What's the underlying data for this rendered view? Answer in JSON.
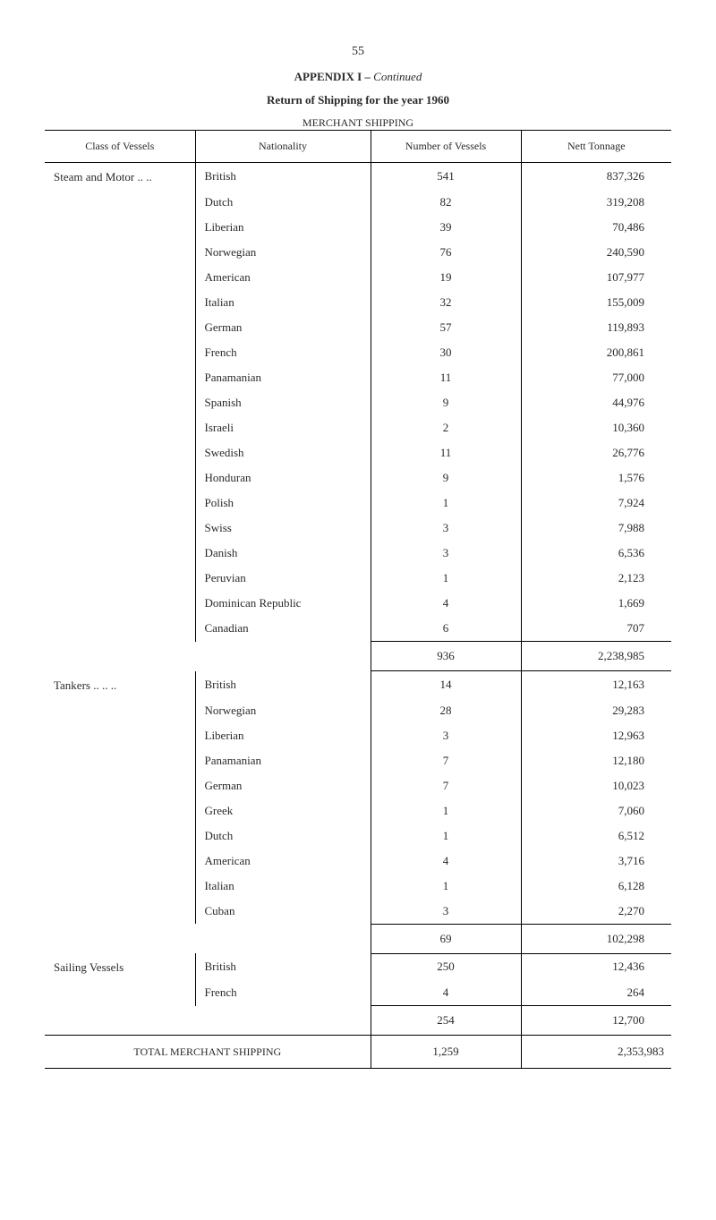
{
  "page_number": "55",
  "appendix_label": "APPENDIX I –",
  "appendix_continued": "Continued",
  "return_title": "Return of Shipping for the year 1960",
  "merchant_title": "MERCHANT SHIPPING",
  "headers": {
    "class": "Class of Vessels",
    "nationality": "Nationality",
    "number": "Number of Vessels",
    "tonnage": "Nett Tonnage"
  },
  "sections": [
    {
      "class_label": "Steam and Motor  ..    ..",
      "rows": [
        {
          "nat": "British",
          "num": "541",
          "ton": "837,326"
        },
        {
          "nat": "Dutch",
          "num": "82",
          "ton": "319,208"
        },
        {
          "nat": "Liberian",
          "num": "39",
          "ton": "70,486"
        },
        {
          "nat": "Norwegian",
          "num": "76",
          "ton": "240,590"
        },
        {
          "nat": "American",
          "num": "19",
          "ton": "107,977"
        },
        {
          "nat": "Italian",
          "num": "32",
          "ton": "155,009"
        },
        {
          "nat": "German",
          "num": "57",
          "ton": "119,893"
        },
        {
          "nat": "French",
          "num": "30",
          "ton": "200,861"
        },
        {
          "nat": "Panamanian",
          "num": "11",
          "ton": "77,000"
        },
        {
          "nat": "Spanish",
          "num": "9",
          "ton": "44,976"
        },
        {
          "nat": "Israeli",
          "num": "2",
          "ton": "10,360"
        },
        {
          "nat": "Swedish",
          "num": "11",
          "ton": "26,776"
        },
        {
          "nat": "Honduran",
          "num": "9",
          "ton": "1,576"
        },
        {
          "nat": "Polish",
          "num": "1",
          "ton": "7,924"
        },
        {
          "nat": "Swiss",
          "num": "3",
          "ton": "7,988"
        },
        {
          "nat": "Danish",
          "num": "3",
          "ton": "6,536"
        },
        {
          "nat": "Peruvian",
          "num": "1",
          "ton": "2,123"
        },
        {
          "nat": "Dominican Republic",
          "num": "4",
          "ton": "1,669"
        },
        {
          "nat": "Canadian",
          "num": "6",
          "ton": "707"
        }
      ],
      "subtotal": {
        "num": "936",
        "ton": "2,238,985"
      }
    },
    {
      "class_label": "Tankers  ..     ..       ..",
      "rows": [
        {
          "nat": "British",
          "num": "14",
          "ton": "12,163"
        },
        {
          "nat": "Norwegian",
          "num": "28",
          "ton": "29,283"
        },
        {
          "nat": "Liberian",
          "num": "3",
          "ton": "12,963"
        },
        {
          "nat": "Panamanian",
          "num": "7",
          "ton": "12,180"
        },
        {
          "nat": "German",
          "num": "7",
          "ton": "10,023"
        },
        {
          "nat": "Greek",
          "num": "1",
          "ton": "7,060"
        },
        {
          "nat": "Dutch",
          "num": "1",
          "ton": "6,512"
        },
        {
          "nat": "American",
          "num": "4",
          "ton": "3,716"
        },
        {
          "nat": "Italian",
          "num": "1",
          "ton": "6,128"
        },
        {
          "nat": "Cuban",
          "num": "3",
          "ton": "2,270"
        }
      ],
      "subtotal": {
        "num": "69",
        "ton": "102,298"
      }
    },
    {
      "class_label": "Sailing Vessels",
      "rows": [
        {
          "nat": "British",
          "num": "250",
          "ton": "12,436"
        },
        {
          "nat": "French",
          "num": "4",
          "ton": "264"
        }
      ],
      "subtotal": {
        "num": "254",
        "ton": "12,700"
      }
    }
  ],
  "total": {
    "label": "TOTAL MERCHANT SHIPPING",
    "num": "1,259",
    "ton": "2,353,983"
  }
}
